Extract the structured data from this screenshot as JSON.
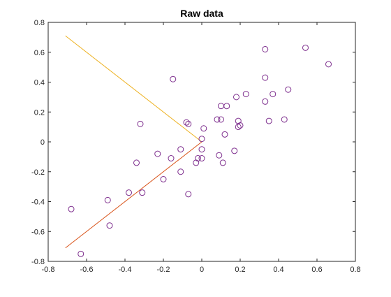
{
  "chart_data": {
    "type": "scatter",
    "title": "Raw data",
    "xlabel": "",
    "ylabel": "",
    "xlim": [
      -0.8,
      0.8
    ],
    "ylim": [
      -0.8,
      0.8
    ],
    "xticks": [
      -0.8,
      -0.6,
      -0.4,
      -0.2,
      0,
      0.2,
      0.4,
      0.6,
      0.8
    ],
    "xtick_labels": [
      "-0.8",
      "-0.6",
      "-0.4",
      "-0.2",
      "0",
      "0.2",
      "0.4",
      "0.6",
      "0.8"
    ],
    "yticks": [
      -0.8,
      -0.6,
      -0.4,
      -0.2,
      0,
      0.2,
      0.4,
      0.6,
      0.8
    ],
    "ytick_labels": [
      "-0.8",
      "-0.6",
      "-0.4",
      "-0.2",
      "0",
      "0.2",
      "0.4",
      "0.6",
      "0.8"
    ],
    "grid": false,
    "series": [
      {
        "type": "scatter",
        "color": "#7E2F8E",
        "marker": "circle",
        "points": [
          [
            -0.68,
            -0.45
          ],
          [
            -0.63,
            -0.75
          ],
          [
            -0.49,
            -0.39
          ],
          [
            -0.48,
            -0.56
          ],
          [
            -0.38,
            -0.34
          ],
          [
            -0.34,
            -0.14
          ],
          [
            -0.32,
            0.12
          ],
          [
            -0.31,
            -0.34
          ],
          [
            -0.23,
            -0.08
          ],
          [
            -0.2,
            -0.25
          ],
          [
            -0.16,
            -0.11
          ],
          [
            -0.15,
            0.42
          ],
          [
            -0.11,
            -0.05
          ],
          [
            -0.11,
            -0.2
          ],
          [
            -0.08,
            0.13
          ],
          [
            -0.07,
            0.12
          ],
          [
            -0.07,
            -0.35
          ],
          [
            -0.03,
            -0.14
          ],
          [
            -0.02,
            -0.11
          ],
          [
            0.0,
            -0.05
          ],
          [
            0.0,
            -0.11
          ],
          [
            0.0,
            0.02
          ],
          [
            0.01,
            0.09
          ],
          [
            0.08,
            0.15
          ],
          [
            0.09,
            -0.09
          ],
          [
            0.1,
            0.15
          ],
          [
            0.1,
            0.24
          ],
          [
            0.11,
            -0.14
          ],
          [
            0.12,
            0.05
          ],
          [
            0.13,
            0.24
          ],
          [
            0.17,
            -0.06
          ],
          [
            0.18,
            0.3
          ],
          [
            0.19,
            0.1
          ],
          [
            0.19,
            0.14
          ],
          [
            0.2,
            0.11
          ],
          [
            0.23,
            0.32
          ],
          [
            0.33,
            0.62
          ],
          [
            0.33,
            0.43
          ],
          [
            0.33,
            0.27
          ],
          [
            0.35,
            0.14
          ],
          [
            0.37,
            0.32
          ],
          [
            0.43,
            0.15
          ],
          [
            0.45,
            0.35
          ],
          [
            0.54,
            0.63
          ],
          [
            0.66,
            0.52
          ]
        ]
      },
      {
        "type": "line",
        "color": "#EDB120",
        "points": [
          [
            -0.71,
            0.71
          ],
          [
            0.0,
            0.0
          ]
        ]
      },
      {
        "type": "line",
        "color": "#D95319",
        "points": [
          [
            -0.71,
            -0.71
          ],
          [
            0.0,
            0.0
          ]
        ]
      }
    ]
  }
}
